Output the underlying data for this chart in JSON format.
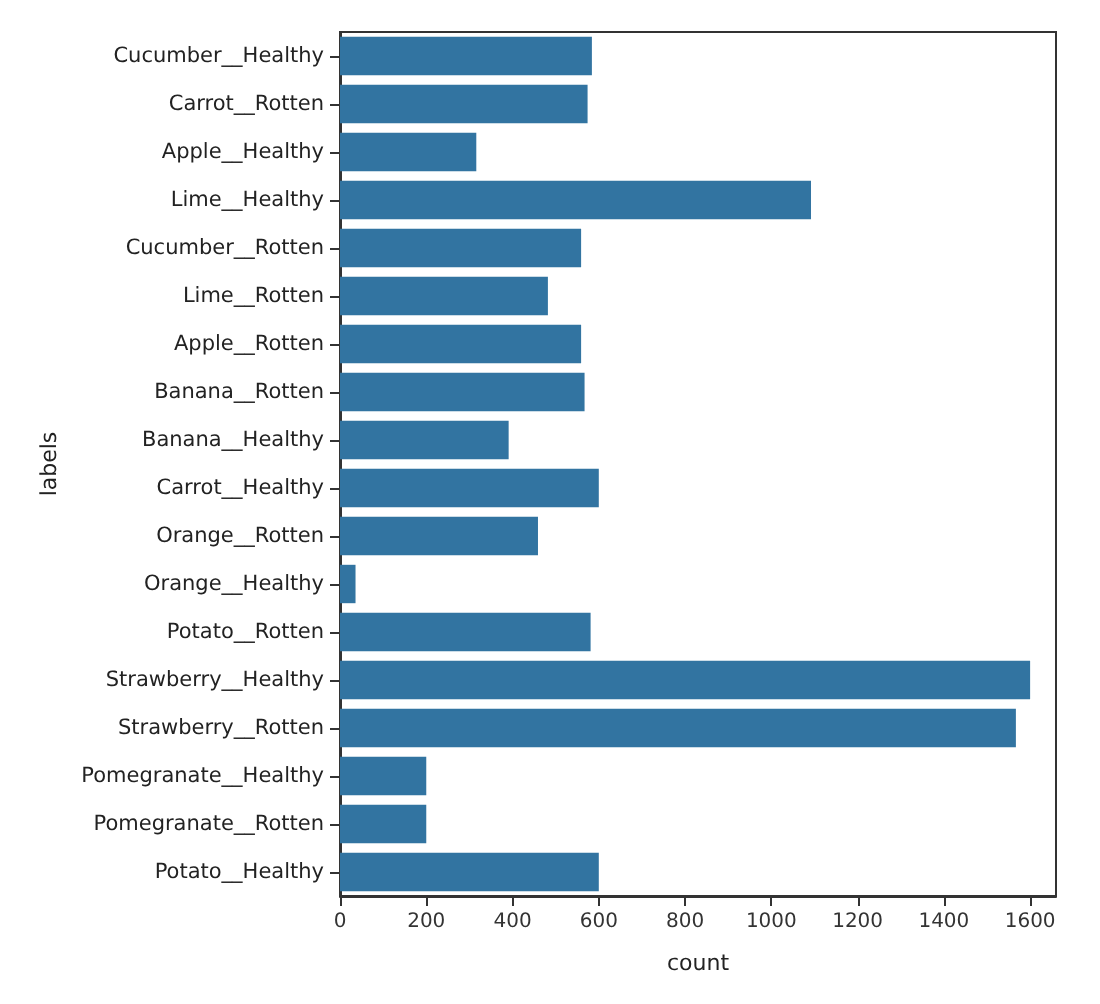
{
  "chart_data": {
    "type": "bar",
    "orientation": "horizontal",
    "xlabel": "count",
    "ylabel": "labels",
    "categories": [
      "Cucumber__Healthy",
      "Carrot__Rotten",
      "Apple__Healthy",
      "Lime__Healthy",
      "Cucumber__Rotten",
      "Lime__Rotten",
      "Apple__Rotten",
      "Banana__Rotten",
      "Banana__Healthy",
      "Carrot__Healthy",
      "Orange__Rotten",
      "Orange__Healthy",
      "Potato__Rotten",
      "Strawberry__Healthy",
      "Strawberry__Rotten",
      "Pomegranate__Healthy",
      "Pomegranate__Rotten",
      "Potato__Healthy"
    ],
    "values": [
      584,
      574,
      316,
      1092,
      559,
      482,
      559,
      567,
      391,
      600,
      459,
      36,
      581,
      1600,
      1567,
      200,
      200,
      600
    ],
    "color": "#3274a1",
    "xlim": [
      0,
      1660
    ],
    "xticks": [
      0,
      200,
      400,
      600,
      800,
      1000,
      1200,
      1400,
      1600
    ],
    "grid": false
  }
}
